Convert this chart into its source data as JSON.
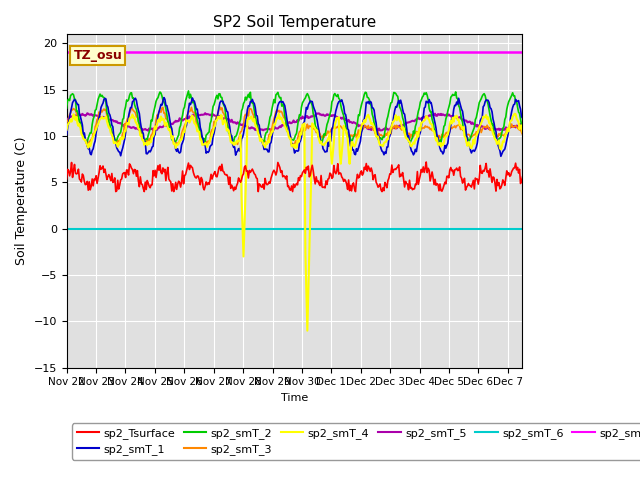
{
  "title": "SP2 Soil Temperature",
  "ylabel": "Soil Temperature (C)",
  "xlabel": "Time",
  "ylim": [
    -15,
    21
  ],
  "yticks": [
    -15,
    -10,
    -5,
    0,
    5,
    10,
    15,
    20
  ],
  "x_labels": [
    "Nov 22",
    "Nov 23",
    "Nov 24",
    "Nov 25",
    "Nov 26",
    "Nov 27",
    "Nov 28",
    "Nov 29",
    "Nov 30",
    "Dec 1",
    "Dec 2",
    "Dec 3",
    "Dec 4",
    "Dec 5",
    "Dec 6",
    "Dec 7"
  ],
  "tz_label": "TZ_osu",
  "tz_box_color": "#ffffcc",
  "tz_text_color": "#8b0000",
  "tz_edge_color": "#cc9900",
  "series_colors": {
    "sp2_Tsurface": "#ff0000",
    "sp2_smT_1": "#0000cc",
    "sp2_smT_2": "#00cc00",
    "sp2_smT_3": "#ff8800",
    "sp2_smT_4": "#ffff00",
    "sp2_smT_5": "#aa00aa",
    "sp2_smT_6": "#00cccc",
    "sp2_smT_7": "#ff00ff"
  },
  "fig_bg_color": "#ffffff",
  "plot_bg_color": "#e0e0e0",
  "grid_color": "#ffffff",
  "sp2_smT_7_value": 19.0,
  "sp2_smT_6_value": -0.05,
  "legend_ncol_row1": 6,
  "figsize": [
    6.4,
    4.8
  ],
  "dpi": 100
}
